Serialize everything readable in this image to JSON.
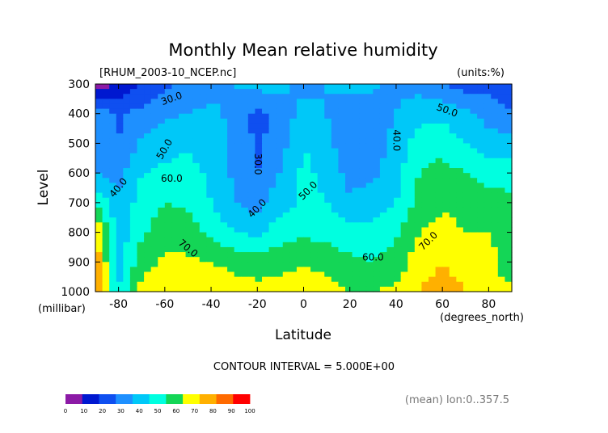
{
  "header": {
    "title": "Monthly Mean relative humidity",
    "file_label": "[RHUM_2003-10_NCEP.nc]",
    "units_label": "(units:%)"
  },
  "footer": {
    "contour_interval": "CONTOUR INTERVAL = 5.000E+00",
    "mean_label": "(mean) lon:0..357.5"
  },
  "chart_data": {
    "type": "heatmap",
    "title": "Monthly Mean relative humidity",
    "xlabel": "Latitude",
    "ylabel": "Level",
    "x_unit_label": "(degrees_north)",
    "y_unit_label": "(millibar)",
    "xlim": [
      -90,
      90
    ],
    "ylim": [
      1000,
      300
    ],
    "x_ticks": [
      -80,
      -60,
      -40,
      -20,
      0,
      20,
      40,
      60,
      80
    ],
    "x_tick_labels": [
      "-80",
      "-60",
      "-40",
      "-20",
      "0",
      "20",
      "40",
      "60",
      "80"
    ],
    "y_ticks": [
      300,
      400,
      500,
      600,
      700,
      800,
      900,
      1000
    ],
    "y_tick_labels": [
      "300",
      "400",
      "500",
      "600",
      "700",
      "800",
      "900",
      "1000"
    ],
    "contour_interval": 5,
    "colorbar": {
      "ticks": [
        0,
        10,
        20,
        30,
        40,
        50,
        60,
        70,
        80,
        90,
        100
      ],
      "tick_labels": [
        "0",
        "10",
        "20",
        "30",
        "40",
        "50",
        "60",
        "70",
        "80",
        "90",
        "100"
      ],
      "colors": [
        "#8c1aa6",
        "#0018d0",
        "#0f4ff0",
        "#1e90ff",
        "#00c8f8",
        "#00ffe0",
        "#14d656",
        "#ffff00",
        "#ffb000",
        "#ff6a00",
        "#ff0000"
      ]
    },
    "contour_labels": [
      {
        "text": "30.0",
        "lat": -57,
        "level": 350,
        "rotate": -20
      },
      {
        "text": "30.0",
        "lat": -20,
        "level": 570,
        "rotate": 90
      },
      {
        "text": "40.0",
        "lat": 40,
        "level": 490,
        "rotate": 90
      },
      {
        "text": "40.0",
        "lat": -80,
        "level": 650,
        "rotate": -50
      },
      {
        "text": "40.0",
        "lat": -20,
        "level": 720,
        "rotate": -45
      },
      {
        "text": "50.0",
        "lat": -60,
        "level": 520,
        "rotate": -60
      },
      {
        "text": "50.0",
        "lat": 2,
        "level": 660,
        "rotate": -45
      },
      {
        "text": "50.0",
        "lat": 62,
        "level": 390,
        "rotate": 20
      },
      {
        "text": "60.0",
        "lat": -57,
        "level": 620,
        "rotate": 0
      },
      {
        "text": "60.0",
        "lat": 30,
        "level": 885,
        "rotate": 0
      },
      {
        "text": "70.0",
        "lat": -50,
        "level": 855,
        "rotate": 40
      },
      {
        "text": "70.0",
        "lat": 54,
        "level": 830,
        "rotate": -45
      }
    ],
    "values_lat": [
      -90,
      -80,
      -70,
      -60,
      -50,
      -40,
      -30,
      -20,
      -10,
      0,
      10,
      20,
      30,
      40,
      50,
      60,
      70,
      80,
      90
    ],
    "values_level": [
      300,
      400,
      500,
      600,
      700,
      800,
      900,
      1000
    ],
    "values": [
      [
        0,
        12,
        22,
        28,
        32,
        36,
        40,
        44,
        44,
        36,
        40,
        44,
        42,
        38,
        36,
        30,
        26,
        26,
        20
      ],
      [
        40,
        28,
        33,
        38,
        40,
        42,
        38,
        26,
        34,
        44,
        40,
        30,
        34,
        40,
        46,
        48,
        42,
        36,
        30
      ],
      [
        40,
        30,
        42,
        46,
        48,
        44,
        38,
        28,
        36,
        50,
        44,
        30,
        34,
        44,
        56,
        56,
        50,
        44,
        44
      ],
      [
        40,
        36,
        50,
        52,
        54,
        48,
        38,
        30,
        40,
        52,
        48,
        36,
        38,
        46,
        60,
        64,
        60,
        56,
        56
      ],
      [
        60,
        42,
        54,
        60,
        58,
        50,
        40,
        36,
        46,
        52,
        50,
        42,
        44,
        50,
        64,
        68,
        66,
        64,
        62
      ],
      [
        80,
        44,
        58,
        66,
        64,
        58,
        50,
        48,
        56,
        58,
        56,
        54,
        54,
        58,
        70,
        74,
        70,
        70,
        68
      ],
      [
        90,
        46,
        66,
        72,
        72,
        70,
        66,
        64,
        66,
        70,
        66,
        62,
        60,
        64,
        76,
        80,
        76,
        74,
        60
      ],
      [
        90,
        50,
        74,
        80,
        80,
        78,
        76,
        74,
        74,
        76,
        74,
        70,
        70,
        72,
        80,
        84,
        80,
        78,
        72
      ]
    ]
  }
}
